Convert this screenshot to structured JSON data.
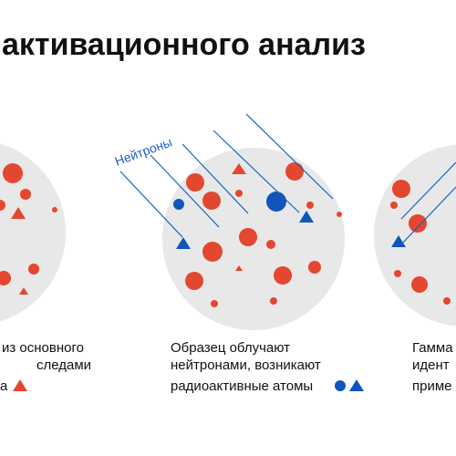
{
  "header": {
    "title": "активационного анализ"
  },
  "labels": {
    "neutrons": "Нейтроны"
  },
  "panels": [
    {
      "caption": [
        "из основного",
        "следами",
        "а"
      ]
    },
    {
      "caption": [
        "Образец облучают",
        "нейтронами, возникают",
        "радиоактивные атомы"
      ]
    },
    {
      "caption": [
        "Гамма",
        "идент",
        "приме"
      ]
    }
  ]
}
